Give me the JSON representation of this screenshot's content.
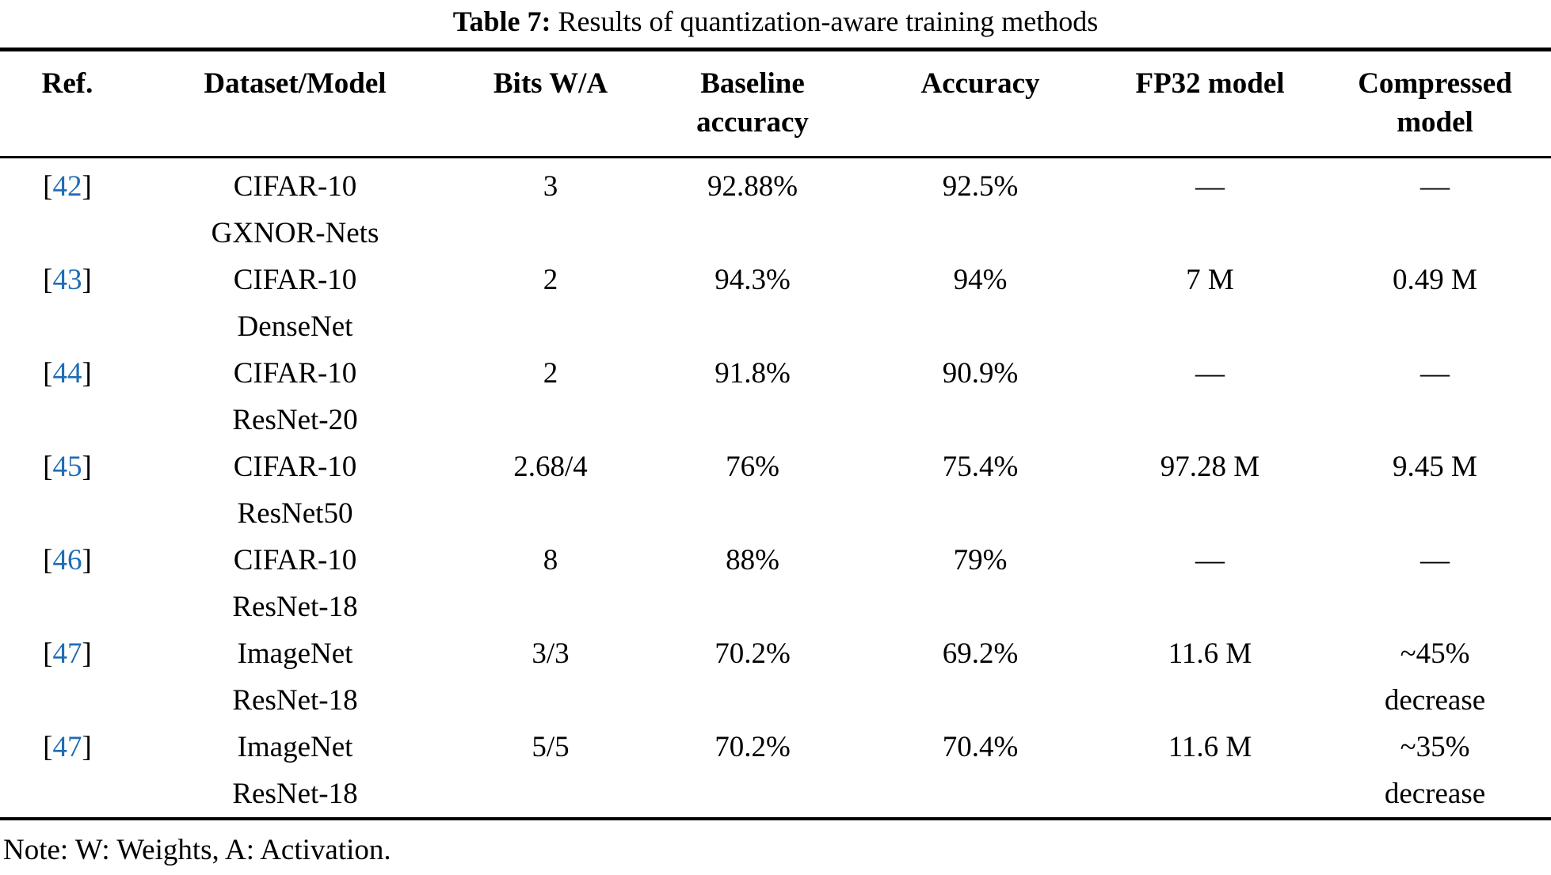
{
  "caption": {
    "label": "Table 7:",
    "text": "Results of quantization-aware training methods"
  },
  "refs": {
    "open": "[",
    "close": "]",
    "link_color": "#1f6cb6"
  },
  "columns": [
    {
      "line1": "Ref.",
      "line2": ""
    },
    {
      "line1": "Dataset/Model",
      "line2": ""
    },
    {
      "line1": "Bits W/A",
      "line2": ""
    },
    {
      "line1": "Baseline",
      "line2": "accuracy"
    },
    {
      "line1": "Accuracy",
      "line2": ""
    },
    {
      "line1": "FP32 model",
      "line2": ""
    },
    {
      "line1": "Compressed",
      "line2": "model"
    }
  ],
  "rows": [
    {
      "ref": "42",
      "dataset": "CIFAR-10",
      "model": "GXNOR-Nets",
      "bits": "3",
      "baseline": "92.88%",
      "accuracy": "92.5%",
      "fp32": "—",
      "compressed": "—",
      "compressed_line2": ""
    },
    {
      "ref": "43",
      "dataset": "CIFAR-10",
      "model": "DenseNet",
      "bits": "2",
      "baseline": "94.3%",
      "accuracy": "94%",
      "fp32": "7 M",
      "compressed": "0.49 M",
      "compressed_line2": ""
    },
    {
      "ref": "44",
      "dataset": "CIFAR-10",
      "model": "ResNet-20",
      "bits": "2",
      "baseline": "91.8%",
      "accuracy": "90.9%",
      "fp32": "—",
      "compressed": "—",
      "compressed_line2": ""
    },
    {
      "ref": "45",
      "dataset": "CIFAR-10",
      "model": "ResNet50",
      "bits": "2.68/4",
      "baseline": "76%",
      "accuracy": "75.4%",
      "fp32": "97.28 M",
      "compressed": "9.45 M",
      "compressed_line2": ""
    },
    {
      "ref": "46",
      "dataset": "CIFAR-10",
      "model": "ResNet-18",
      "bits": "8",
      "baseline": "88%",
      "accuracy": "79%",
      "fp32": "—",
      "compressed": "—",
      "compressed_line2": ""
    },
    {
      "ref": "47",
      "dataset": "ImageNet",
      "model": "ResNet-18",
      "bits": "3/3",
      "baseline": "70.2%",
      "accuracy": "69.2%",
      "fp32": "11.6 M",
      "compressed": "~45%",
      "compressed_line2": "decrease"
    },
    {
      "ref": "47",
      "dataset": "ImageNet",
      "model": "ResNet-18",
      "bits": "5/5",
      "baseline": "70.2%",
      "accuracy": "70.4%",
      "fp32": "11.6 M",
      "compressed": "~35%",
      "compressed_line2": "decrease"
    }
  ],
  "note": "Note: W: Weights, A: Activation."
}
